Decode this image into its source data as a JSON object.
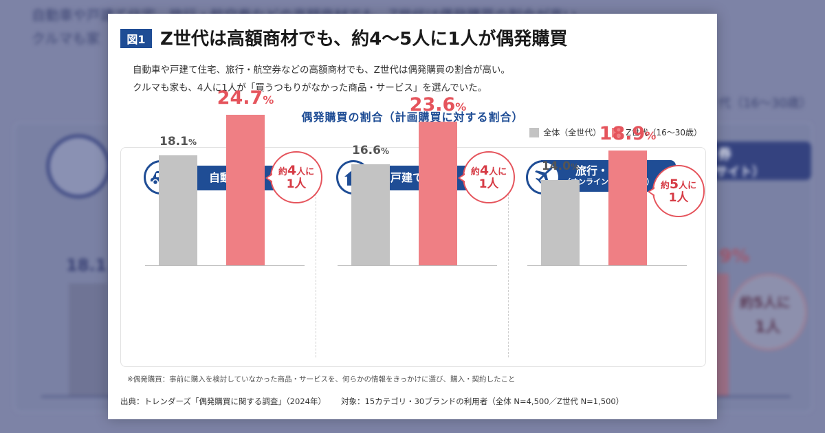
{
  "figure_label": "図1",
  "headline": "Z世代は高額商材でも、約4〜5人に1人が偶発購買",
  "subtitle_line1": "自動車や戸建て住宅、旅行・航空券などの高額商材でも、Z世代は偶発購買の割合が高い。",
  "subtitle_line2": "クルマも家も、4人に1人が「買うつもりがなかった商品・サービス」を選んでいた。",
  "background": {
    "line1": "自動車や戸建て住宅、旅行・航空券などの高額商材でも、Z世代は偶発購買の割合が高い",
    "line2": "クルマも家",
    "legend_fragment": "代（16〜30歳）",
    "pill_fragment_top": "券",
    "pill_fragment_bottom": "サイト）",
    "value_fragment_left": "18.1",
    "value_fragment_right": "9%",
    "bubble_top": "約5人に",
    "bubble_bottom": "1人"
  },
  "chart_data": {
    "type": "bar",
    "title": "偶発購買の割合（計画購買に対する割合）",
    "unit": "%",
    "series": [
      {
        "name": "全体（全世代）",
        "color": "#c3c3c3"
      },
      {
        "name": "Z世代（16〜30歳）",
        "color": "#ef7f84"
      }
    ],
    "panels": [
      {
        "category": "自動車",
        "category_sub": "",
        "icon": "car-icon",
        "overall": 18.1,
        "genz": 24.7,
        "overall_label": "18.1",
        "genz_label": "24.7",
        "callout_prefix": "約",
        "callout_num": "4",
        "callout_suffix": "人に",
        "callout_line2": "1人"
      },
      {
        "category": "戸建て住宅",
        "category_sub": "",
        "icon": "house-icon",
        "overall": 16.6,
        "genz": 23.6,
        "overall_label": "16.6",
        "genz_label": "23.6",
        "callout_prefix": "約",
        "callout_num": "4",
        "callout_suffix": "人に",
        "callout_line2": "1人"
      },
      {
        "category": "旅行・航空券",
        "category_sub": "（オンライン旅行サイト）",
        "icon": "airplane-icon",
        "overall": 14.0,
        "genz": 18.9,
        "overall_label": "14.0",
        "genz_label": "18.9",
        "callout_prefix": "約",
        "callout_num": "5",
        "callout_suffix": "人に",
        "callout_line2": "1人"
      }
    ]
  },
  "note": "※偶発購買：事前に購入を検討していなかった商品・サービスを、何らかの情報をきっかけに選び、購入・契約したこと",
  "source_left": "出典：トレンダーズ「偶発購買に関する調査」（2024年）",
  "source_right": "対象：15カテゴリ・30ブランドの利用者（全体 N=4,500／Z世代 N=1,500）"
}
